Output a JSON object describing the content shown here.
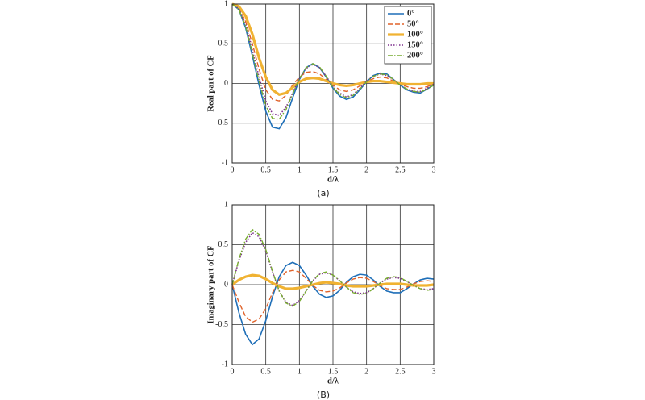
{
  "chart_data": [
    {
      "type": "line",
      "ylabel": "Real part of CF",
      "xlabel": "d/λ",
      "caption": "(a)",
      "x": [
        0,
        0.1,
        0.2,
        0.3,
        0.4,
        0.5,
        0.6,
        0.7,
        0.8,
        0.9,
        1,
        1.1,
        1.2,
        1.3,
        1.4,
        1.5,
        1.6,
        1.7,
        1.8,
        1.9,
        2,
        2.1,
        2.2,
        2.3,
        2.4,
        2.5,
        2.6,
        2.7,
        2.8,
        2.9,
        3
      ],
      "xlim": [
        0,
        3
      ],
      "xticks": [
        0,
        0.5,
        1,
        1.5,
        2,
        2.5,
        3
      ],
      "ylim": [
        -1,
        1
      ],
      "yticks": [
        -1,
        -0.5,
        0,
        0.5,
        1
      ],
      "grid": true,
      "legend": "upper right",
      "series": [
        {
          "name": "0°",
          "color": "#1f6fb8",
          "style": "solid",
          "linewidth": 1.6,
          "values": [
            1,
            0.93,
            0.7,
            0.35,
            -0.02,
            -0.35,
            -0.55,
            -0.57,
            -0.43,
            -0.18,
            0.05,
            0.2,
            0.25,
            0.2,
            0.08,
            -0.06,
            -0.16,
            -0.2,
            -0.17,
            -0.08,
            0.02,
            0.1,
            0.13,
            0.12,
            0.05,
            -0.02,
            -0.08,
            -0.11,
            -0.12,
            -0.07,
            -0.02
          ]
        },
        {
          "name": "50°",
          "color": "#e0622a",
          "style": "dashed",
          "linewidth": 1.4,
          "values": [
            1,
            0.95,
            0.78,
            0.5,
            0.18,
            -0.08,
            -0.2,
            -0.22,
            -0.15,
            -0.02,
            0.08,
            0.14,
            0.15,
            0.12,
            0.05,
            -0.02,
            -0.08,
            -0.1,
            -0.08,
            -0.03,
            0.02,
            0.06,
            0.08,
            0.07,
            0.03,
            -0.01,
            -0.04,
            -0.06,
            -0.06,
            -0.04,
            -0.01
          ]
        },
        {
          "name": "100°",
          "color": "#f0b232",
          "style": "solid",
          "linewidth": 3.2,
          "values": [
            1,
            0.97,
            0.85,
            0.62,
            0.32,
            0.08,
            -0.08,
            -0.14,
            -0.12,
            -0.05,
            0.02,
            0.06,
            0.07,
            0.06,
            0.03,
            0,
            -0.02,
            -0.03,
            -0.02,
            0,
            0.02,
            0.03,
            0.03,
            0.02,
            0.01,
            0,
            -0.01,
            -0.01,
            -0.01,
            0,
            0
          ]
        },
        {
          "name": "150°",
          "color": "#7e2f8e",
          "style": "dotted",
          "linewidth": 1.6,
          "values": [
            1,
            0.94,
            0.74,
            0.42,
            0.08,
            -0.22,
            -0.38,
            -0.4,
            -0.3,
            -0.12,
            0.06,
            0.19,
            0.24,
            0.2,
            0.09,
            -0.04,
            -0.12,
            -0.17,
            -0.14,
            -0.06,
            0.03,
            0.09,
            0.12,
            0.1,
            0.05,
            -0.02,
            -0.07,
            -0.1,
            -0.1,
            -0.06,
            -0.01
          ]
        },
        {
          "name": "200°",
          "color": "#77ac30",
          "style": "dashdot",
          "linewidth": 1.4,
          "values": [
            1,
            0.93,
            0.72,
            0.38,
            0.03,
            -0.28,
            -0.44,
            -0.45,
            -0.33,
            -0.13,
            0.06,
            0.2,
            0.25,
            0.21,
            0.09,
            -0.05,
            -0.14,
            -0.18,
            -0.15,
            -0.07,
            0.02,
            0.09,
            0.12,
            0.11,
            0.05,
            -0.02,
            -0.07,
            -0.1,
            -0.11,
            -0.07,
            -0.02
          ]
        }
      ]
    },
    {
      "type": "line",
      "ylabel": "Imaginary part of CF",
      "xlabel": "d/λ",
      "caption": "(B)",
      "x": [
        0,
        0.1,
        0.2,
        0.3,
        0.4,
        0.5,
        0.6,
        0.7,
        0.8,
        0.9,
        1,
        1.1,
        1.2,
        1.3,
        1.4,
        1.5,
        1.6,
        1.7,
        1.8,
        1.9,
        2,
        2.1,
        2.2,
        2.3,
        2.4,
        2.5,
        2.6,
        2.7,
        2.8,
        2.9,
        3
      ],
      "xlim": [
        0,
        3
      ],
      "xticks": [
        0,
        0.5,
        1,
        1.5,
        2,
        2.5,
        3
      ],
      "ylim": [
        -1,
        1
      ],
      "yticks": [
        -1,
        -0.5,
        0,
        0.5,
        1
      ],
      "grid": true,
      "series": [
        {
          "color": "#1f6fb8",
          "style": "solid",
          "linewidth": 1.6,
          "values": [
            0,
            -0.35,
            -0.62,
            -0.75,
            -0.68,
            -0.45,
            -0.15,
            0.1,
            0.24,
            0.28,
            0.24,
            0.12,
            -0.02,
            -0.12,
            -0.16,
            -0.14,
            -0.07,
            0.03,
            0.1,
            0.13,
            0.12,
            0.06,
            -0.02,
            -0.08,
            -0.1,
            -0.1,
            -0.05,
            0.01,
            0.06,
            0.08,
            0.07
          ]
        },
        {
          "color": "#e0622a",
          "style": "dashed",
          "linewidth": 1.4,
          "values": [
            0,
            -0.22,
            -0.4,
            -0.47,
            -0.43,
            -0.3,
            -0.1,
            0.06,
            0.16,
            0.18,
            0.16,
            0.08,
            -0.01,
            -0.07,
            -0.09,
            -0.08,
            -0.04,
            0.02,
            0.07,
            0.09,
            0.08,
            0.04,
            -0.01,
            -0.05,
            -0.06,
            -0.06,
            -0.03,
            0.01,
            0.04,
            0.05,
            0.04
          ]
        },
        {
          "color": "#f0b232",
          "style": "solid",
          "linewidth": 3.2,
          "values": [
            0,
            0.06,
            0.1,
            0.12,
            0.11,
            0.07,
            0.02,
            -0.02,
            -0.05,
            -0.05,
            -0.04,
            -0.02,
            0,
            0.02,
            0.03,
            0.02,
            0.01,
            -0.01,
            -0.02,
            -0.02,
            -0.02,
            -0.01,
            0,
            0.01,
            0.01,
            0.01,
            0,
            -0.01,
            -0.01,
            -0.01,
            0
          ]
        },
        {
          "color": "#7e2f8e",
          "style": "dotted",
          "linewidth": 1.6,
          "values": [
            0,
            0.3,
            0.53,
            0.65,
            0.6,
            0.42,
            0.16,
            -0.08,
            -0.22,
            -0.26,
            -0.2,
            -0.08,
            0.05,
            0.13,
            0.15,
            0.12,
            0.05,
            -0.03,
            -0.09,
            -0.11,
            -0.1,
            -0.05,
            0.02,
            0.07,
            0.09,
            0.08,
            0.04,
            -0.01,
            -0.05,
            -0.06,
            -0.05
          ]
        },
        {
          "color": "#77ac30",
          "style": "dashdot",
          "linewidth": 1.4,
          "values": [
            0,
            0.32,
            0.57,
            0.69,
            0.63,
            0.44,
            0.17,
            -0.08,
            -0.23,
            -0.27,
            -0.21,
            -0.08,
            0.05,
            0.14,
            0.16,
            0.12,
            0.05,
            -0.03,
            -0.1,
            -0.12,
            -0.11,
            -0.05,
            0.02,
            0.08,
            0.1,
            0.09,
            0.04,
            -0.01,
            -0.05,
            -0.07,
            -0.06
          ]
        }
      ]
    }
  ]
}
